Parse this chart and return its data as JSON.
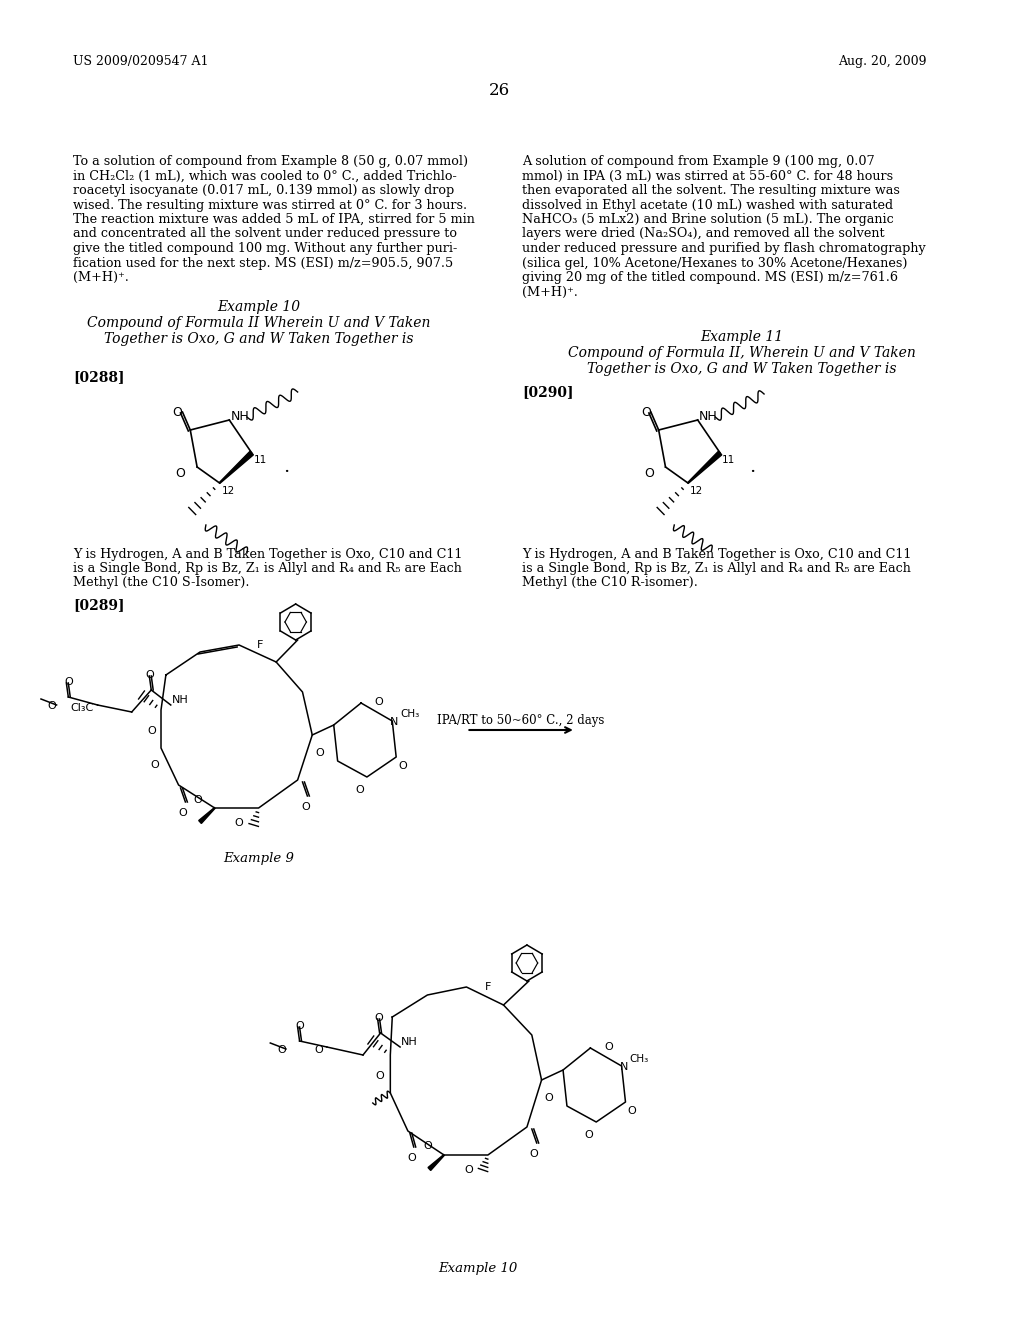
{
  "background_color": "#ffffff",
  "page_number": "26",
  "header_left": "US 2009/0209547 A1",
  "header_right": "Aug. 20, 2009",
  "left_column_text": [
    "To a solution of compound from Example 8 (50 g, 0.07 mmol)",
    "in CH₂Cl₂ (1 mL), which was cooled to 0° C., added Trichlo-",
    "roacetyl isocyanate (0.017 mL, 0.139 mmol) as slowly drop",
    "wised. The resulting mixture was stirred at 0° C. for 3 hours.",
    "The reaction mixture was added 5 mL of IPA, stirred for 5 min",
    "and concentrated all the solvent under reduced pressure to",
    "give the titled compound 100 mg. Without any further puri-",
    "fication used for the next step. MS (ESI) m/z=905.5, 907.5",
    "(M+H)⁺."
  ],
  "right_column_text": [
    "A solution of compound from Example 9 (100 mg, 0.07",
    "mmol) in IPA (3 mL) was stirred at 55-60° C. for 48 hours",
    "then evaporated all the solvent. The resulting mixture was",
    "dissolved in Ethyl acetate (10 mL) washed with saturated",
    "NaHCO₃ (5 mLx2) and Brine solution (5 mL). The organic",
    "layers were dried (Na₂SO₄), and removed all the solvent",
    "under reduced pressure and purified by flash chromatography",
    "(silica gel, 10% Acetone/Hexanes to 30% Acetone/Hexanes)",
    "giving 20 mg of the titled compound. MS (ESI) m/z=761.6",
    "(M+H)⁺."
  ],
  "example10_title": "Example 10",
  "example10_subtitle1": "Compound of Formula II Wherein U and V Taken",
  "example10_subtitle2": "Together is Oxo, G and W Taken Together is",
  "example11_title": "Example 11",
  "example11_subtitle1": "Compound of Formula II, Wherein U and V Taken",
  "example11_subtitle2": "Together is Oxo, G and W Taken Together is",
  "para0288": "[0288]",
  "para0289": "[0289]",
  "para0290": "[0290]",
  "left_desc1": "Y is Hydrogen, A and B Taken Together is Oxo, C10 and C11",
  "left_desc2": "is a Single Bond, Rp is Bz, Z₁ is Allyl and R₄ and R₅ are Each",
  "left_desc3": "Methyl (the C10 S-Isomer).",
  "right_desc1": "Y is Hydrogen, A and B Taken Together is Oxo, C10 and C11",
  "right_desc2": "is a Single Bond, Rp is Bz, Z₁ is Allyl and R₄ and R₅ are Each",
  "right_desc3": "Methyl (the C10 R-isomer).",
  "arrow_label": "IPA/RT to 50~60° C., 2 days",
  "example9_caption": "Example 9",
  "example10_caption": "Example 10"
}
